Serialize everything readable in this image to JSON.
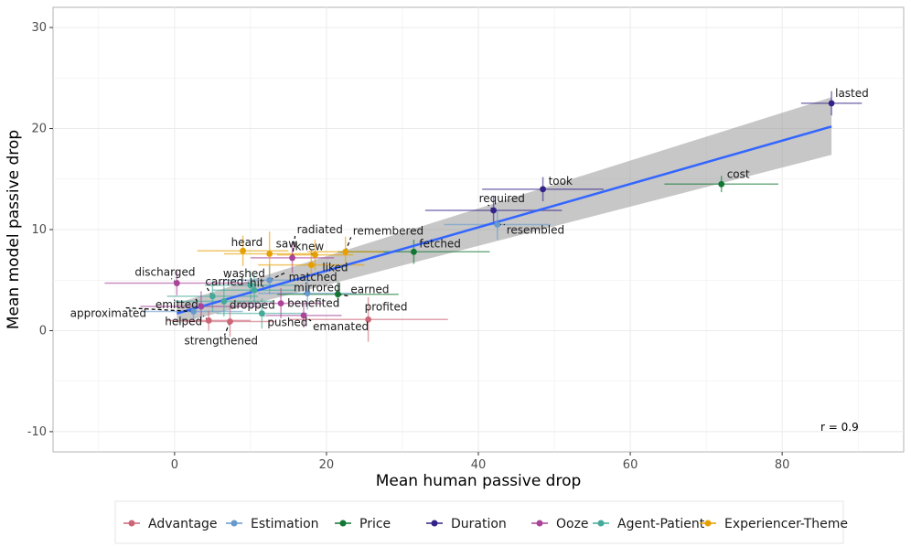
{
  "chart_data": {
    "type": "scatter",
    "xlabel": "Mean human passive drop",
    "ylabel": "Mean model passive drop",
    "xlim": [
      -16,
      96
    ],
    "ylim": [
      -12,
      32
    ],
    "x_ticks": [
      0,
      20,
      40,
      60,
      80
    ],
    "y_ticks": [
      -10,
      0,
      10,
      20,
      30
    ],
    "grid": true,
    "annotation": "r =  0.9",
    "legend_position": "bottom",
    "groups": [
      {
        "name": "Advantage",
        "color": "#cc6677"
      },
      {
        "name": "Estimation",
        "color": "#6699cc"
      },
      {
        "name": "Price",
        "color": "#117733"
      },
      {
        "name": "Duration",
        "color": "#332288"
      },
      {
        "name": "Ooze",
        "color": "#aa4499"
      },
      {
        "name": "Agent-Patient",
        "color": "#44aa99"
      },
      {
        "name": "Experiencer-Theme",
        "color": "#e69f00"
      }
    ],
    "points": [
      {
        "label": "lasted",
        "group": "Duration",
        "x": 86.5,
        "y": 22.5,
        "xerr": 4.0,
        "yerr": 1.2
      },
      {
        "label": "cost",
        "group": "Price",
        "x": 72.0,
        "y": 14.5,
        "xerr": 7.5,
        "yerr": 0.8
      },
      {
        "label": "took",
        "group": "Duration",
        "x": 48.5,
        "y": 14.0,
        "xerr": 8.0,
        "yerr": 1.2
      },
      {
        "label": "required",
        "group": "Duration",
        "x": 42.0,
        "y": 11.9,
        "xerr": 9.0,
        "yerr": 1.4
      },
      {
        "label": "resembled",
        "group": "Estimation",
        "x": 42.5,
        "y": 10.5,
        "xerr": 7.0,
        "yerr": 1.5
      },
      {
        "label": "fetched",
        "group": "Price",
        "x": 31.5,
        "y": 7.8,
        "xerr": 10.0,
        "yerr": 1.2
      },
      {
        "label": "remembered",
        "group": "Experiencer-Theme",
        "x": 22.5,
        "y": 7.8,
        "xerr": 5.0,
        "yerr": 1.5
      },
      {
        "label": "knew",
        "group": "Experiencer-Theme",
        "x": 18.5,
        "y": 7.5,
        "xerr": 5.0,
        "yerr": 1.5
      },
      {
        "label": "radiated",
        "group": "Ooze",
        "x": 15.5,
        "y": 7.2,
        "xerr": 5.5,
        "yerr": 1.5
      },
      {
        "label": "saw",
        "group": "Experiencer-Theme",
        "x": 12.5,
        "y": 7.6,
        "xerr": 6.0,
        "yerr": 2.2
      },
      {
        "label": "heard",
        "group": "Experiencer-Theme",
        "x": 9.0,
        "y": 7.9,
        "xerr": 6.0,
        "yerr": 1.5
      },
      {
        "label": "liked",
        "group": "Experiencer-Theme",
        "x": 18.0,
        "y": 6.5,
        "xerr": 7.0,
        "yerr": 1.5
      },
      {
        "label": "matched",
        "group": "Estimation",
        "x": 12.5,
        "y": 5.0,
        "xerr": 6.0,
        "yerr": 1.4
      },
      {
        "label": "discharged",
        "group": "Ooze",
        "x": 0.3,
        "y": 4.7,
        "xerr": 9.5,
        "yerr": 1.2
      },
      {
        "label": "washed",
        "group": "Agent-Patient",
        "x": 10.0,
        "y": 4.5,
        "xerr": 6.0,
        "yerr": 1.4
      },
      {
        "label": "carried",
        "group": "Agent-Patient",
        "x": 5.0,
        "y": 3.4,
        "xerr": 6.0,
        "yerr": 1.5
      },
      {
        "label": "hit",
        "group": "Agent-Patient",
        "x": 10.5,
        "y": 4.0,
        "xerr": 5.5,
        "yerr": 1.5
      },
      {
        "label": "mirrored",
        "group": "Estimation",
        "x": 17.5,
        "y": 3.7,
        "xerr": 6.5,
        "yerr": 1.6
      },
      {
        "label": "earned",
        "group": "Price",
        "x": 21.5,
        "y": 3.6,
        "xerr": 8.0,
        "yerr": 1.2
      },
      {
        "label": "emitted",
        "group": "Ooze",
        "x": 3.5,
        "y": 2.4,
        "xerr": 8.0,
        "yerr": 1.5
      },
      {
        "label": "dropped",
        "group": "Agent-Patient",
        "x": 6.5,
        "y": 2.9,
        "xerr": 6.5,
        "yerr": 1.5
      },
      {
        "label": "benefited",
        "group": "Ooze",
        "x": 14.0,
        "y": 2.7,
        "xerr": 5.5,
        "yerr": 1.5
      },
      {
        "label": "approximated",
        "group": "Estimation",
        "x": 2.5,
        "y": 1.9,
        "xerr": 6.5,
        "yerr": 1.0
      },
      {
        "label": "pushed",
        "group": "Agent-Patient",
        "x": 11.5,
        "y": 1.7,
        "xerr": 6.0,
        "yerr": 1.5
      },
      {
        "label": "helped",
        "group": "Advantage",
        "x": 4.5,
        "y": 1.0,
        "xerr": 5.5,
        "yerr": 1.0
      },
      {
        "label": "strengthened",
        "group": "Advantage",
        "x": 7.3,
        "y": 0.9,
        "xerr": 6.0,
        "yerr": 1.5
      },
      {
        "label": "emanated",
        "group": "Ooze",
        "x": 17.0,
        "y": 1.5,
        "xerr": 5.0,
        "yerr": 1.2
      },
      {
        "label": "profited",
        "group": "Advantage",
        "x": 25.5,
        "y": 1.1,
        "xerr": 10.5,
        "yerr": 2.2
      }
    ],
    "fit_line": {
      "x": [
        0.3,
        86.5
      ],
      "y": [
        1.7,
        20.2
      ]
    },
    "confidence_band": {
      "x": [
        0.3,
        86.5
      ],
      "lower": [
        0.7,
        17.4
      ],
      "upper": [
        2.7,
        23.1
      ]
    }
  }
}
